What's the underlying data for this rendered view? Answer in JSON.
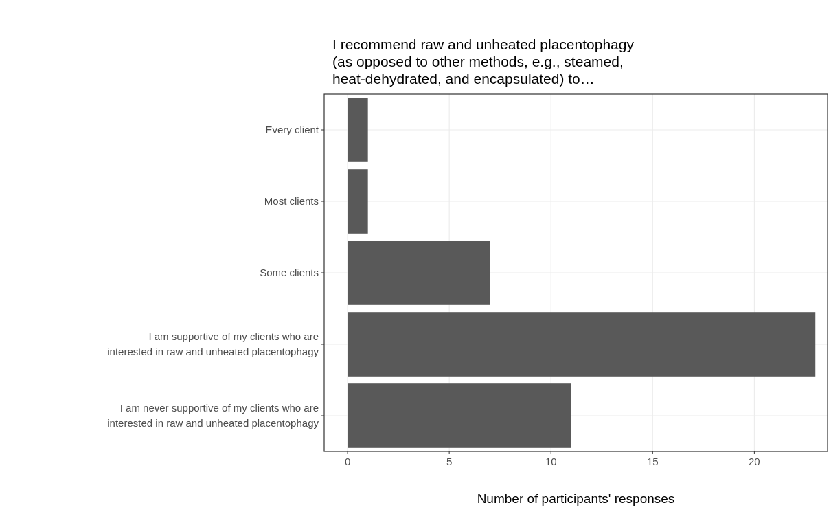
{
  "chart_data": {
    "type": "bar",
    "orientation": "horizontal",
    "title": "I recommend raw and unheated placentophagy\n(as opposed to other methods, e.g., steamed,\nheat-dehydrated, and encapsulated) to…",
    "xlabel": "Number of participants' responses",
    "categories": [
      "Every client",
      "Most clients",
      "Some clients",
      "I am supportive of my clients who are\ninterested in raw and unheated placentophagy",
      "I am never supportive of my clients who are\ninterested in raw and unheated placentophagy"
    ],
    "values": [
      1,
      1,
      7,
      23,
      11
    ],
    "color": "#595959",
    "xlim": [
      -1.15,
      23.6
    ],
    "xticks": [
      0,
      5,
      10,
      15,
      20
    ],
    "grid": true
  }
}
